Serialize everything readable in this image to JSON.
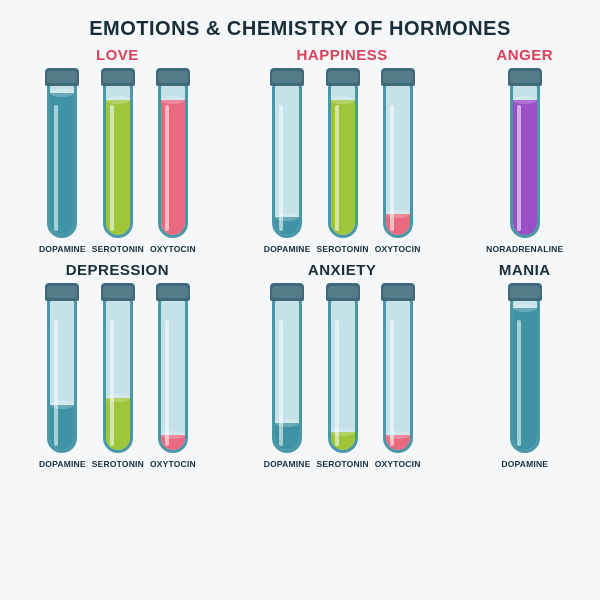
{
  "title": "EMOTIONS & CHEMISTRY OF HORMONES",
  "title_fontsize": 20,
  "title_color": "#1a2e3a",
  "background_color": "#f5f7f8",
  "tube_body_color": "#c5e2e8",
  "tube_border_color": "#4a97a8",
  "cap_color": "#3e6a7a",
  "groups": [
    {
      "name": "LOVE",
      "title_color": "#d9425a",
      "tubes": [
        {
          "hormone": "DOPAMINE",
          "fill_pct": 95,
          "color": "#3f93a5"
        },
        {
          "hormone": "SEROTONIN",
          "fill_pct": 90,
          "color": "#9fc63a"
        },
        {
          "hormone": "OXYTOCIN",
          "fill_pct": 90,
          "color": "#e96a7f"
        }
      ]
    },
    {
      "name": "HAPPINESS",
      "title_color": "#d9425a",
      "tubes": [
        {
          "hormone": "DOPAMINE",
          "fill_pct": 12,
          "color": "#3f93a5"
        },
        {
          "hormone": "SEROTONIN",
          "fill_pct": 90,
          "color": "#9fc63a"
        },
        {
          "hormone": "OXYTOCIN",
          "fill_pct": 14,
          "color": "#e96a7f"
        }
      ]
    },
    {
      "name": "ANGER",
      "title_color": "#d9425a",
      "tubes": [
        {
          "hormone": "NORADRENALINE",
          "fill_pct": 90,
          "color": "#9a4fc7"
        }
      ]
    },
    {
      "name": "DEPRESSION",
      "title_color": "#1a2e3a",
      "tubes": [
        {
          "hormone": "DOPAMINE",
          "fill_pct": 30,
          "color": "#3f93a5"
        },
        {
          "hormone": "SEROTONIN",
          "fill_pct": 35,
          "color": "#9fc63a"
        },
        {
          "hormone": "OXYTOCIN",
          "fill_pct": 10,
          "color": "#e96a7f"
        }
      ]
    },
    {
      "name": "ANXIETY",
      "title_color": "#1a2e3a",
      "tubes": [
        {
          "hormone": "DOPAMINE",
          "fill_pct": 18,
          "color": "#3f93a5"
        },
        {
          "hormone": "SEROTONIN",
          "fill_pct": 12,
          "color": "#9fc63a"
        },
        {
          "hormone": "OXYTOCIN",
          "fill_pct": 10,
          "color": "#e96a7f"
        }
      ]
    },
    {
      "name": "MANIA",
      "title_color": "#1a2e3a",
      "tubes": [
        {
          "hormone": "DOPAMINE",
          "fill_pct": 95,
          "color": "#3f93a5"
        }
      ]
    }
  ]
}
